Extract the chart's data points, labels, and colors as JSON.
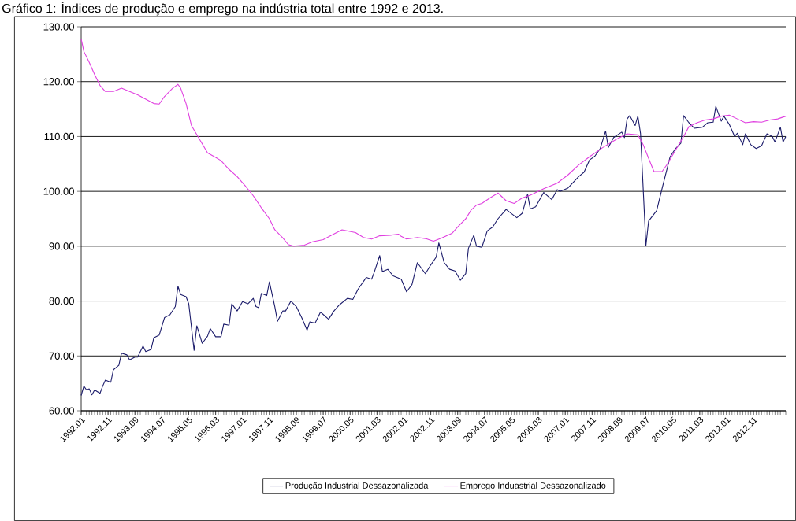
{
  "chart_data": {
    "type": "line",
    "title": "Gráfico 1: Índices de produção e emprego na indústria total entre 1992 e 2013.",
    "xlim": [
      "1992-01",
      "2013-11"
    ],
    "xticks": [
      {
        "value": "1992-01",
        "label": "1992.01"
      },
      {
        "value": "1992-11",
        "label": "1992.11"
      },
      {
        "value": "1993-09",
        "label": "1993.09"
      },
      {
        "value": "1994-07",
        "label": "1994.07"
      },
      {
        "value": "1995-05",
        "label": "1995.05"
      },
      {
        "value": "1996-03",
        "label": "1996.03"
      },
      {
        "value": "1997-01",
        "label": "1997.01"
      },
      {
        "value": "1997-11",
        "label": "1997.11"
      },
      {
        "value": "1998-09",
        "label": "1998.09"
      },
      {
        "value": "1999-07",
        "label": "1999.07"
      },
      {
        "value": "2000-05",
        "label": "2000.05"
      },
      {
        "value": "2001-03",
        "label": "2001.03"
      },
      {
        "value": "2002-01",
        "label": "2002.01"
      },
      {
        "value": "2002-11",
        "label": "2002.11"
      },
      {
        "value": "2003-09",
        "label": "2003.09"
      },
      {
        "value": "2004-07",
        "label": "2004.07"
      },
      {
        "value": "2005-05",
        "label": "2005.05"
      },
      {
        "value": "2006-03",
        "label": "2006.03"
      },
      {
        "value": "2007-01",
        "label": "2007.01"
      },
      {
        "value": "2007-11",
        "label": "2007.11"
      },
      {
        "value": "2008-09",
        "label": "2008.09"
      },
      {
        "value": "2009-07",
        "label": "2009.07"
      },
      {
        "value": "2010-05",
        "label": "2010.05"
      },
      {
        "value": "2011-03",
        "label": "2011.03"
      },
      {
        "value": "2012-01",
        "label": "2012.01"
      },
      {
        "value": "2012-11",
        "label": "2012.11"
      }
    ],
    "ylim": [
      60,
      130
    ],
    "yticks": [
      {
        "value": 60,
        "label": "60.00"
      },
      {
        "value": 70,
        "label": "70.00"
      },
      {
        "value": 80,
        "label": "80.00"
      },
      {
        "value": 90,
        "label": "90.00"
      },
      {
        "value": 100,
        "label": "100.00"
      },
      {
        "value": 110,
        "label": "110.00"
      },
      {
        "value": 120,
        "label": "120.00"
      },
      {
        "value": 130,
        "label": "130.00"
      }
    ],
    "grid": "y",
    "legend": "bottom",
    "line_style": "solid",
    "series": [
      {
        "name": "Produção Industrial Dessazonalizada",
        "color": "#1c1c6b",
        "x": [
          "1992-01",
          "1992-02",
          "1992-03",
          "1992-04",
          "1992-05",
          "1992-06",
          "1992-08",
          "1992-09",
          "1992-10",
          "1992-12",
          "1993-01",
          "1993-03",
          "1993-04",
          "1993-06",
          "1993-07",
          "1993-09",
          "1993-10",
          "1993-12",
          "1994-01",
          "1994-03",
          "1994-04",
          "1994-06",
          "1994-08",
          "1994-10",
          "1994-12",
          "1995-01",
          "1995-02",
          "1995-04",
          "1995-05",
          "1995-07",
          "1995-08",
          "1995-10",
          "1995-12",
          "1996-01",
          "1996-03",
          "1996-05",
          "1996-06",
          "1996-08",
          "1996-09",
          "1996-11",
          "1997-01",
          "1997-03",
          "1997-05",
          "1997-06",
          "1997-07",
          "1997-08",
          "1997-10",
          "1997-11",
          "1998-01",
          "1998-02",
          "1998-04",
          "1998-05",
          "1998-07",
          "1998-09",
          "1998-11",
          "1999-01",
          "1999-02",
          "1999-04",
          "1999-06",
          "1999-09",
          "1999-11",
          "2000-01",
          "2000-04",
          "2000-06",
          "2000-08",
          "2000-11",
          "2001-01",
          "2001-02",
          "2001-04",
          "2001-05",
          "2001-07",
          "2001-09",
          "2001-12",
          "2002-02",
          "2002-04",
          "2002-06",
          "2002-09",
          "2002-11",
          "2003-01",
          "2003-02",
          "2003-04",
          "2003-06",
          "2003-08",
          "2003-10",
          "2003-12",
          "2004-01",
          "2004-03",
          "2004-04",
          "2004-06",
          "2004-08",
          "2004-10",
          "2004-12",
          "2005-03",
          "2005-07",
          "2005-09",
          "2005-11",
          "2005-12",
          "2006-02",
          "2006-05",
          "2006-08",
          "2006-10",
          "2006-11",
          "2007-02",
          "2007-06",
          "2007-08",
          "2007-10",
          "2007-12",
          "2008-02",
          "2008-04",
          "2008-05",
          "2008-07",
          "2008-10",
          "2008-11",
          "2008-12",
          "2009-01",
          "2009-03",
          "2009-04",
          "2009-05",
          "2009-07",
          "2009-08",
          "2009-11",
          "2010-01",
          "2010-04",
          "2010-06",
          "2010-08",
          "2010-09",
          "2010-11",
          "2011-01",
          "2011-04",
          "2011-06",
          "2011-08",
          "2011-09",
          "2011-11",
          "2011-12",
          "2012-02",
          "2012-04",
          "2012-05",
          "2012-07",
          "2012-08",
          "2012-10",
          "2012-12",
          "2013-02",
          "2013-04",
          "2013-06",
          "2013-07",
          "2013-09",
          "2013-10",
          "2013-11"
        ],
        "values": [
          62.8,
          64.5,
          63.8,
          64.0,
          62.9,
          63.8,
          63.2,
          64.5,
          65.6,
          65.2,
          67.5,
          68.3,
          70.5,
          70.2,
          69.3,
          69.8,
          69.8,
          71.8,
          70.8,
          71.2,
          73.3,
          73.8,
          77.0,
          77.5,
          79.0,
          82.7,
          81.2,
          80.8,
          79.5,
          71.0,
          75.5,
          72.3,
          73.6,
          75.0,
          73.5,
          73.5,
          75.8,
          75.6,
          79.5,
          78.2,
          79.9,
          79.5,
          80.5,
          79.0,
          78.8,
          81.4,
          81.0,
          83.5,
          79.0,
          76.3,
          78.2,
          78.2,
          80.0,
          79.0,
          77.0,
          74.7,
          76.2,
          76.0,
          78.0,
          76.7,
          78.2,
          79.3,
          80.5,
          80.3,
          82.2,
          84.3,
          84.0,
          85.3,
          88.3,
          85.4,
          85.8,
          84.6,
          84.0,
          81.7,
          83.0,
          87.0,
          85.0,
          86.6,
          88.0,
          90.6,
          87.0,
          85.8,
          85.5,
          83.8,
          85.0,
          89.6,
          92.0,
          90.0,
          89.8,
          92.8,
          93.5,
          95.0,
          96.7,
          95.2,
          96.0,
          99.5,
          96.8,
          97.2,
          99.8,
          98.5,
          100.3,
          100.0,
          100.6,
          102.7,
          103.5,
          105.7,
          106.4,
          107.8,
          111.0,
          108.0,
          109.8,
          110.8,
          109.8,
          113.2,
          113.8,
          112.0,
          113.7,
          110.5,
          90.1,
          94.6,
          96.5,
          100.5,
          106.3,
          107.8,
          108.8,
          113.8,
          112.5,
          111.5,
          111.7,
          112.5,
          112.6,
          115.5,
          112.8,
          113.7,
          112.2,
          110.0,
          110.6,
          108.5,
          110.5,
          108.5,
          107.8,
          108.3,
          110.5,
          110.0,
          109.0,
          111.7,
          109.0,
          110.0
        ]
      },
      {
        "name": "Emprego Induastrial Dessazonalizado",
        "color": "#e040e0",
        "x": [
          "1992-01",
          "1992-02",
          "1992-04",
          "1992-06",
          "1992-08",
          "1992-10",
          "1993-01",
          "1993-04",
          "1993-07",
          "1993-10",
          "1994-01",
          "1994-04",
          "1994-06",
          "1994-08",
          "1994-11",
          "1995-01",
          "1995-02",
          "1995-04",
          "1995-06",
          "1995-09",
          "1995-12",
          "1996-03",
          "1996-05",
          "1996-08",
          "1996-11",
          "1997-02",
          "1997-05",
          "1997-08",
          "1997-11",
          "1998-01",
          "1998-04",
          "1998-06",
          "1998-08",
          "1998-12",
          "1999-03",
          "1999-07",
          "1999-10",
          "2000-02",
          "2000-07",
          "2000-10",
          "2001-01",
          "2001-04",
          "2001-08",
          "2001-11",
          "2001-12",
          "2002-02",
          "2002-06",
          "2002-09",
          "2002-12",
          "2003-03",
          "2003-07",
          "2003-09",
          "2003-12",
          "2004-02",
          "2004-04",
          "2004-06",
          "2004-09",
          "2004-12",
          "2005-03",
          "2005-06",
          "2005-09",
          "2005-12",
          "2006-05",
          "2006-10",
          "2007-02",
          "2007-06",
          "2007-10",
          "2008-03",
          "2008-08",
          "2008-12",
          "2009-04",
          "2009-06",
          "2009-08",
          "2009-10",
          "2010-01",
          "2010-03",
          "2010-06",
          "2010-09",
          "2010-11",
          "2011-02",
          "2011-05",
          "2011-08",
          "2011-11",
          "2012-02",
          "2012-05",
          "2012-08",
          "2012-11",
          "2013-02",
          "2013-05",
          "2013-08",
          "2013-11"
        ],
        "values": [
          127.8,
          125.5,
          123.5,
          121.3,
          119.3,
          118.2,
          118.2,
          118.8,
          118.2,
          117.6,
          116.8,
          116.0,
          115.9,
          117.3,
          118.8,
          119.5,
          118.8,
          116.0,
          112.0,
          109.5,
          107.0,
          106.2,
          105.6,
          104.0,
          102.7,
          101.0,
          99.2,
          97.0,
          95.0,
          93.0,
          91.5,
          90.3,
          90.0,
          90.2,
          90.8,
          91.2,
          92.0,
          93.0,
          92.5,
          91.6,
          91.3,
          91.9,
          92.0,
          92.2,
          91.8,
          91.3,
          91.6,
          91.4,
          90.9,
          91.5,
          92.4,
          93.5,
          95.0,
          96.6,
          97.5,
          97.8,
          98.8,
          99.7,
          98.3,
          97.8,
          98.8,
          99.3,
          100.5,
          101.5,
          103.0,
          104.8,
          106.3,
          108.0,
          109.5,
          110.5,
          110.3,
          108.5,
          106.0,
          103.6,
          103.6,
          105.0,
          107.5,
          110.0,
          111.8,
          112.5,
          113.0,
          113.2,
          113.7,
          113.9,
          113.2,
          112.5,
          112.7,
          112.6,
          113.0,
          113.2,
          113.7
        ]
      }
    ]
  }
}
